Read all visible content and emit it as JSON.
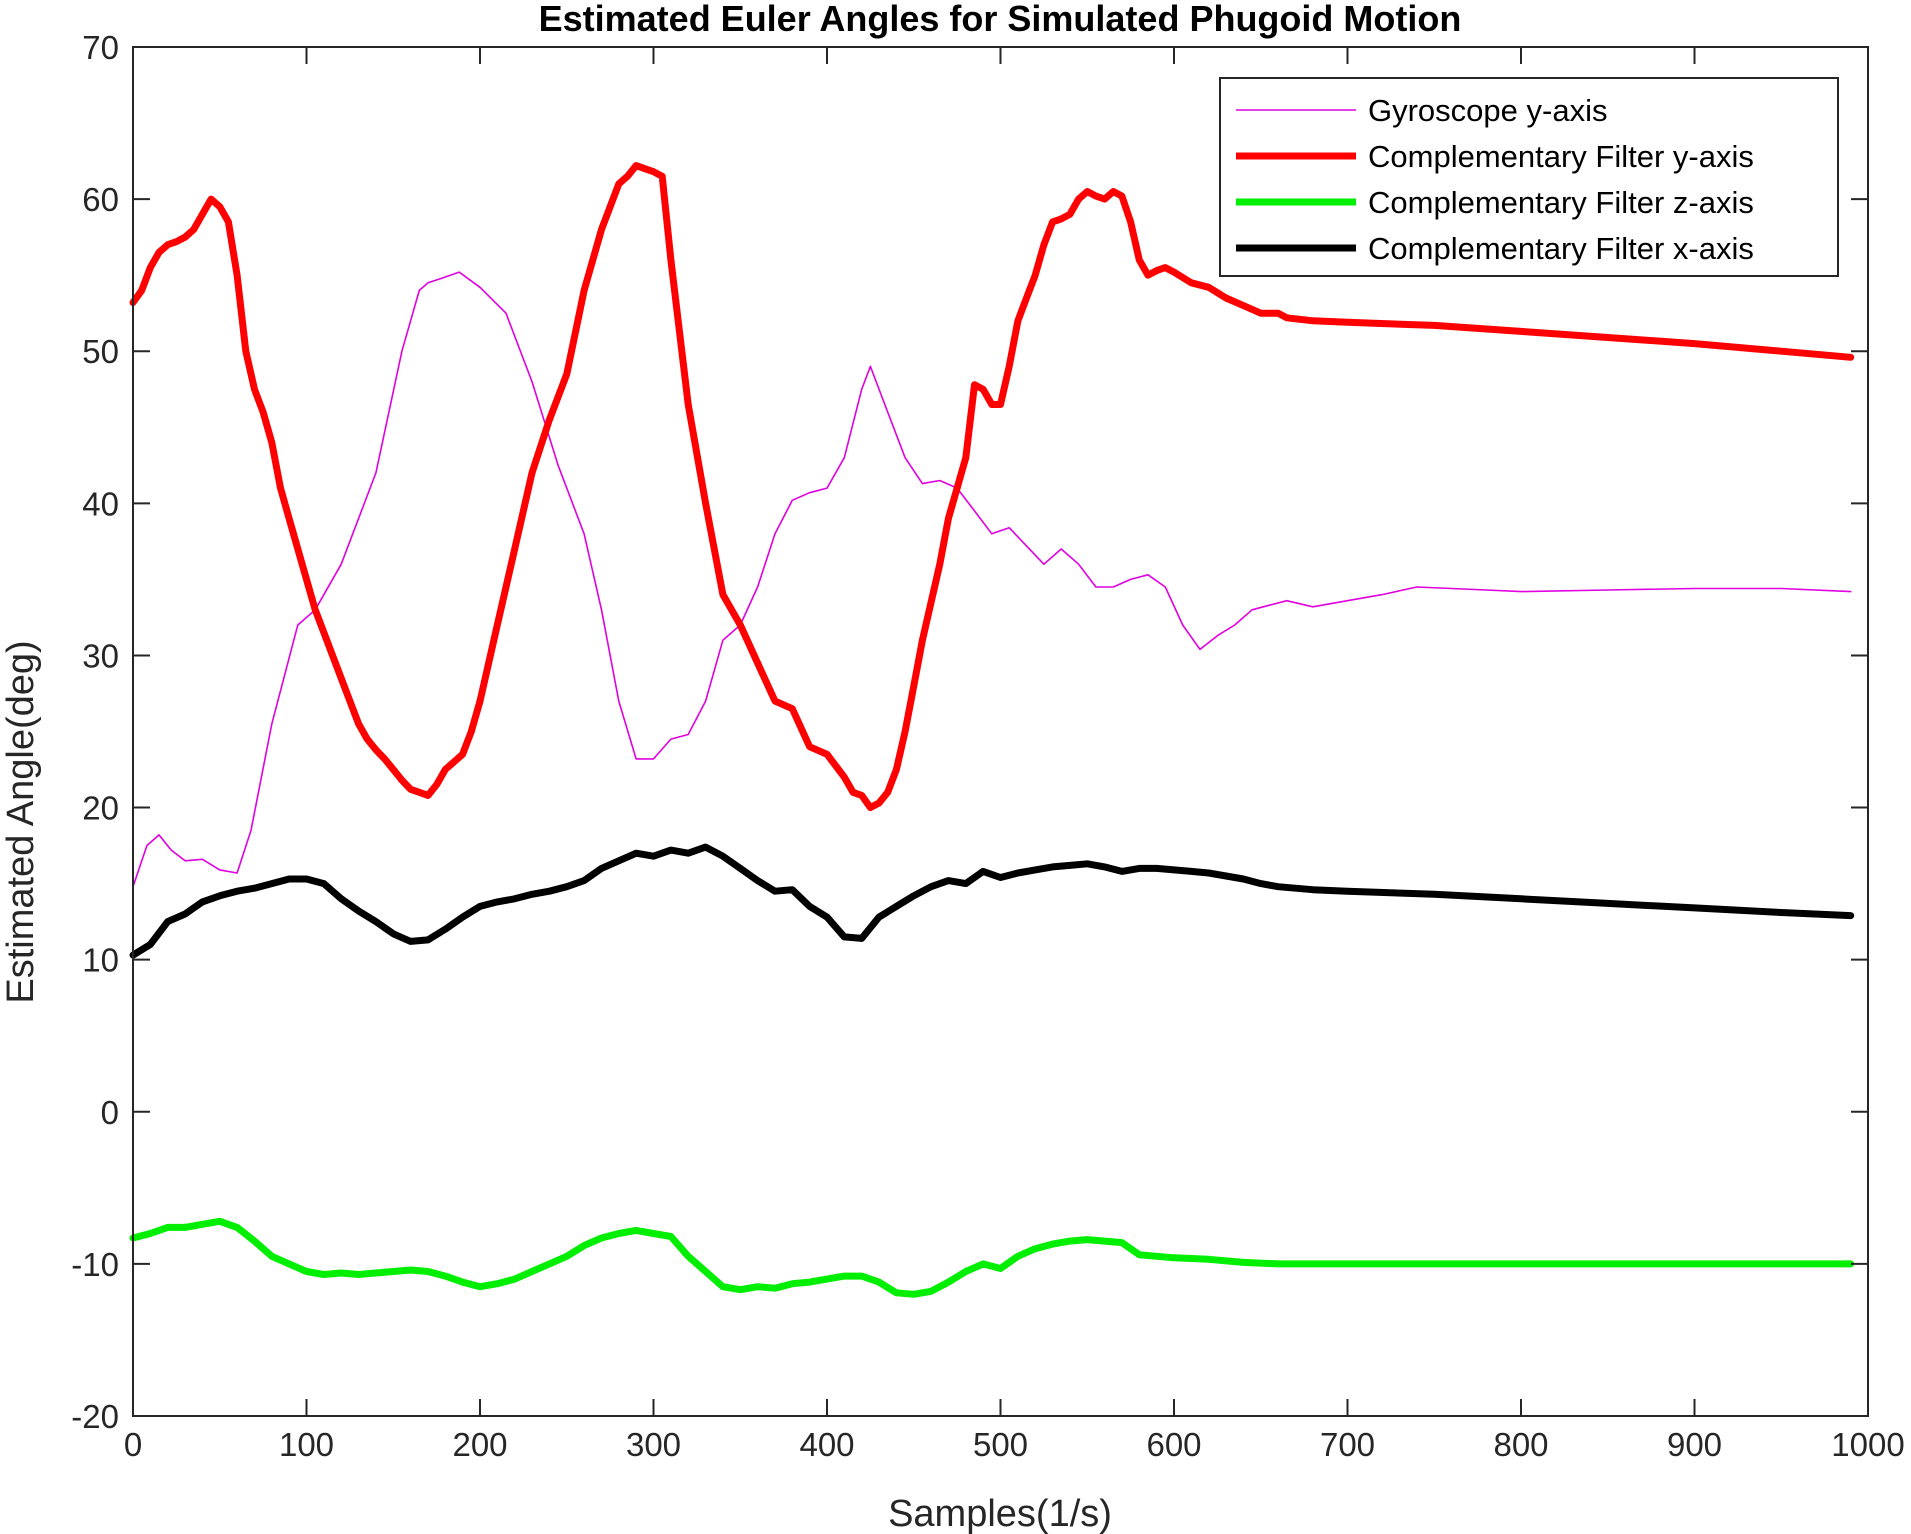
{
  "chart_data": {
    "type": "line",
    "title": "Estimated Euler Angles for Simulated Phugoid Motion",
    "xlabel": "Samples(1/s)",
    "ylabel": "Estimated Angle(deg)",
    "xlim": [
      0,
      1000
    ],
    "ylim": [
      -20,
      70
    ],
    "xticks": [
      0,
      100,
      200,
      300,
      400,
      500,
      600,
      700,
      800,
      900,
      1000
    ],
    "yticks": [
      -20,
      -10,
      0,
      10,
      20,
      30,
      40,
      50,
      60,
      70
    ],
    "grid": false,
    "legend_position": "top-right",
    "series": [
      {
        "name": "Gyroscope y-axis",
        "color": "#e000e0",
        "line_width": "thin",
        "x": [
          0,
          8,
          15,
          22,
          30,
          40,
          50,
          60,
          68,
          80,
          95,
          105,
          120,
          140,
          155,
          165,
          170,
          178,
          188,
          200,
          215,
          230,
          245,
          260,
          270,
          280,
          290,
          300,
          310,
          320,
          330,
          340,
          350,
          360,
          370,
          380,
          390,
          400,
          410,
          420,
          425,
          435,
          445,
          455,
          465,
          475,
          485,
          495,
          505,
          515,
          525,
          535,
          545,
          555,
          565,
          575,
          585,
          595,
          605,
          615,
          625,
          635,
          645,
          655,
          665,
          680,
          700,
          720,
          740,
          760,
          780,
          800,
          850,
          900,
          950,
          990
        ],
        "values": [
          14.8,
          17.5,
          18.2,
          17.2,
          16.5,
          16.6,
          15.9,
          15.7,
          18.5,
          25.5,
          32.0,
          33.0,
          36.0,
          42.0,
          50.0,
          54.0,
          54.5,
          54.8,
          55.2,
          54.2,
          52.5,
          48.0,
          42.5,
          38.0,
          33.0,
          27.0,
          23.2,
          23.2,
          24.5,
          24.8,
          27.0,
          31.0,
          32.0,
          34.5,
          38.0,
          40.2,
          40.7,
          41.0,
          43.0,
          47.5,
          49.0,
          46.0,
          43.0,
          41.3,
          41.5,
          41.0,
          39.5,
          38.0,
          38.4,
          37.2,
          36.0,
          37.0,
          36.0,
          34.5,
          34.5,
          35.0,
          35.3,
          34.5,
          32.0,
          30.4,
          31.3,
          32.0,
          33.0,
          33.3,
          33.6,
          33.2,
          33.6,
          34.0,
          34.5,
          34.4,
          34.3,
          34.2,
          34.3,
          34.4,
          34.4,
          34.2
        ]
      },
      {
        "name": "Complementary Filter y-axis",
        "color": "#ff0000",
        "line_width": "thick",
        "x": [
          0,
          5,
          10,
          15,
          20,
          25,
          30,
          35,
          40,
          45,
          50,
          55,
          60,
          65,
          70,
          75,
          80,
          85,
          90,
          95,
          100,
          105,
          110,
          115,
          120,
          125,
          130,
          135,
          140,
          145,
          150,
          155,
          160,
          165,
          170,
          175,
          180,
          185,
          190,
          195,
          200,
          210,
          220,
          230,
          240,
          250,
          260,
          270,
          280,
          285,
          290,
          295,
          300,
          305,
          310,
          320,
          330,
          340,
          350,
          360,
          370,
          380,
          390,
          400,
          410,
          415,
          420,
          425,
          430,
          435,
          440,
          445,
          450,
          455,
          460,
          465,
          470,
          475,
          480,
          485,
          490,
          495,
          500,
          505,
          510,
          515,
          520,
          525,
          530,
          535,
          540,
          545,
          550,
          555,
          560,
          565,
          570,
          575,
          580,
          585,
          590,
          595,
          600,
          610,
          620,
          630,
          640,
          650,
          655,
          660,
          665,
          680,
          700,
          750,
          800,
          850,
          900,
          950,
          990
        ],
        "values": [
          53.2,
          54.0,
          55.5,
          56.5,
          57.0,
          57.2,
          57.5,
          58.0,
          59.0,
          60.0,
          59.5,
          58.5,
          55.0,
          50.0,
          47.5,
          46.0,
          44.0,
          41.0,
          39.0,
          37.0,
          35.0,
          33.0,
          31.5,
          30.0,
          28.5,
          27.0,
          25.5,
          24.5,
          23.8,
          23.2,
          22.5,
          21.8,
          21.2,
          21.0,
          20.8,
          21.5,
          22.5,
          23.0,
          23.5,
          25.0,
          27.0,
          32.0,
          37.0,
          42.0,
          45.5,
          48.5,
          54.0,
          58.0,
          61.0,
          61.5,
          62.2,
          62.0,
          61.8,
          61.5,
          56.0,
          46.5,
          40.0,
          34.0,
          32.0,
          29.5,
          27.0,
          26.5,
          24.0,
          23.5,
          22.0,
          21.0,
          20.8,
          20.0,
          20.3,
          21.0,
          22.5,
          25.0,
          28.0,
          31.0,
          33.5,
          36.0,
          39.0,
          41.0,
          43.0,
          47.8,
          47.5,
          46.5,
          46.5,
          49.0,
          52.0,
          53.5,
          55.0,
          57.0,
          58.5,
          58.7,
          59.0,
          60.0,
          60.5,
          60.2,
          60.0,
          60.5,
          60.2,
          58.5,
          56.0,
          55.0,
          55.3,
          55.5,
          55.2,
          54.5,
          54.2,
          53.5,
          53.0,
          52.5,
          52.5,
          52.5,
          52.2,
          52.0,
          51.9,
          51.7,
          51.3,
          50.9,
          50.5,
          50.0,
          49.6
        ]
      },
      {
        "name": "Complementary Filter z-axis",
        "color": "#00ee00",
        "line_width": "thick",
        "x": [
          0,
          10,
          20,
          30,
          40,
          50,
          60,
          70,
          80,
          90,
          100,
          110,
          120,
          130,
          140,
          150,
          160,
          170,
          180,
          190,
          200,
          210,
          220,
          230,
          240,
          250,
          260,
          270,
          280,
          290,
          300,
          310,
          320,
          330,
          340,
          350,
          360,
          370,
          380,
          390,
          400,
          410,
          420,
          430,
          440,
          450,
          460,
          470,
          480,
          490,
          500,
          510,
          520,
          530,
          540,
          550,
          560,
          570,
          580,
          590,
          600,
          620,
          640,
          660,
          680,
          700,
          750,
          800,
          850,
          900,
          950,
          990
        ],
        "values": [
          -8.3,
          -8.0,
          -7.6,
          -7.6,
          -7.4,
          -7.2,
          -7.6,
          -8.5,
          -9.5,
          -10.0,
          -10.5,
          -10.7,
          -10.6,
          -10.7,
          -10.6,
          -10.5,
          -10.4,
          -10.5,
          -10.8,
          -11.2,
          -11.5,
          -11.3,
          -11.0,
          -10.5,
          -10.0,
          -9.5,
          -8.8,
          -8.3,
          -8.0,
          -7.8,
          -8.0,
          -8.2,
          -9.5,
          -10.5,
          -11.5,
          -11.7,
          -11.5,
          -11.6,
          -11.3,
          -11.2,
          -11.0,
          -10.8,
          -10.8,
          -11.2,
          -11.9,
          -12.0,
          -11.8,
          -11.2,
          -10.5,
          -10.0,
          -10.3,
          -9.5,
          -9.0,
          -8.7,
          -8.5,
          -8.4,
          -8.5,
          -8.6,
          -9.4,
          -9.5,
          -9.6,
          -9.7,
          -9.9,
          -10.0,
          -10.0,
          -10.0,
          -10.0,
          -10.0,
          -10.0,
          -10.0,
          -10.0,
          -10.0
        ]
      },
      {
        "name": "Complementary Filter x-axis",
        "color": "#000000",
        "line_width": "thick",
        "x": [
          0,
          10,
          20,
          30,
          40,
          50,
          60,
          70,
          80,
          90,
          100,
          110,
          120,
          130,
          140,
          150,
          160,
          170,
          180,
          190,
          200,
          210,
          220,
          230,
          240,
          250,
          260,
          270,
          280,
          290,
          300,
          310,
          320,
          330,
          340,
          350,
          360,
          370,
          380,
          390,
          400,
          410,
          420,
          430,
          440,
          450,
          460,
          470,
          480,
          490,
          500,
          510,
          520,
          530,
          540,
          550,
          560,
          570,
          580,
          590,
          600,
          610,
          620,
          630,
          640,
          650,
          660,
          680,
          700,
          750,
          800,
          850,
          900,
          950,
          990
        ],
        "values": [
          10.3,
          11.0,
          12.5,
          13.0,
          13.8,
          14.2,
          14.5,
          14.7,
          15.0,
          15.3,
          15.3,
          15.0,
          14.0,
          13.2,
          12.5,
          11.7,
          11.2,
          11.3,
          12.0,
          12.8,
          13.5,
          13.8,
          14.0,
          14.3,
          14.5,
          14.8,
          15.2,
          16.0,
          16.5,
          17.0,
          16.8,
          17.2,
          17.0,
          17.4,
          16.8,
          16.0,
          15.2,
          14.5,
          14.6,
          13.5,
          12.8,
          11.5,
          11.4,
          12.8,
          13.5,
          14.2,
          14.8,
          15.2,
          15.0,
          15.8,
          15.4,
          15.7,
          15.9,
          16.1,
          16.2,
          16.3,
          16.1,
          15.8,
          16.0,
          16.0,
          15.9,
          15.8,
          15.7,
          15.5,
          15.3,
          15.0,
          14.8,
          14.6,
          14.5,
          14.3,
          14.0,
          13.7,
          13.4,
          13.1,
          12.9
        ]
      }
    ]
  }
}
